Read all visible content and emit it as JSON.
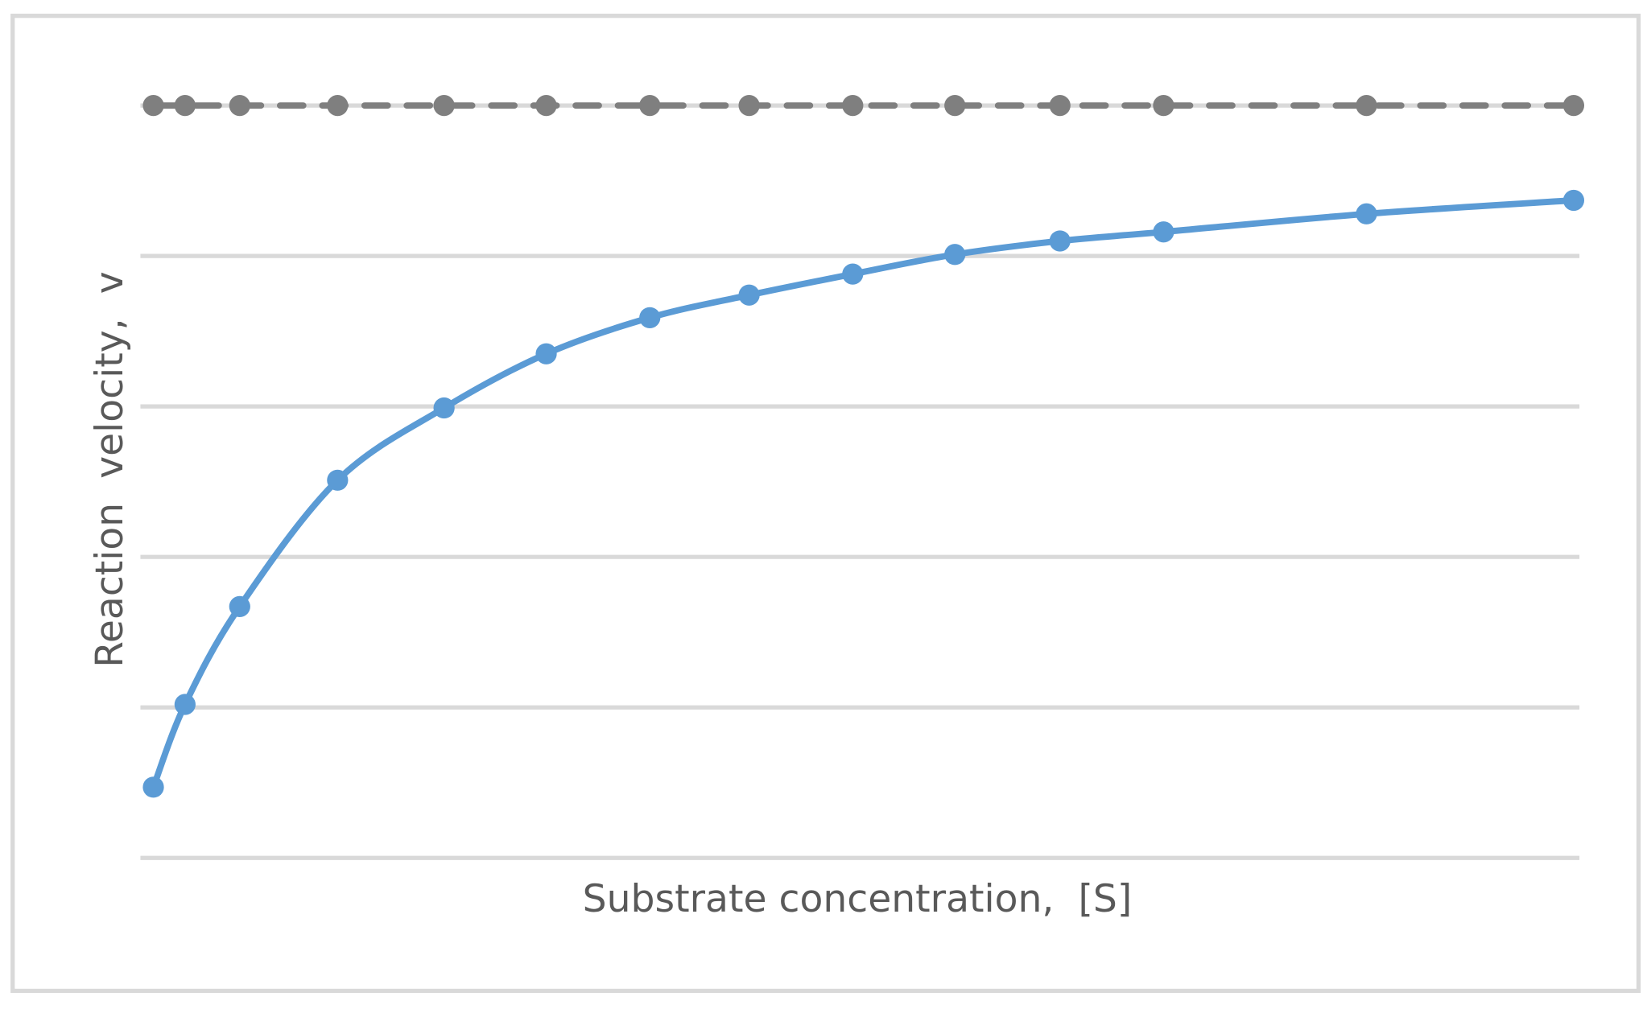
{
  "chart_data": {
    "type": "line",
    "title": "",
    "xlabel": "Substrate concentration,  [S]",
    "ylabel": "Reaction  velocity,  v",
    "xlim": [
      0,
      100
    ],
    "ylim": [
      0,
      5
    ],
    "grid": true,
    "legend": "none",
    "x": [
      0.9,
      3.1,
      6.9,
      13.7,
      21.1,
      28.2,
      35.4,
      42.3,
      49.5,
      56.6,
      63.9,
      71.1,
      85.2,
      99.6
    ],
    "series": [
      {
        "style": "dashed",
        "color": "#7f7f7f",
        "values": [
          5,
          5,
          5,
          5,
          5,
          5,
          5,
          5,
          5,
          5,
          5,
          5,
          5,
          5
        ]
      },
      {
        "style": "smooth",
        "color": "#5b9bd5",
        "values": [
          0.47,
          1.02,
          1.67,
          2.51,
          2.99,
          3.35,
          3.59,
          3.74,
          3.88,
          4.01,
          4.1,
          4.16,
          4.28,
          4.37
        ]
      }
    ],
    "colors": {
      "gridline": "#d9d9d9",
      "frame": "#d9d9d9"
    }
  }
}
